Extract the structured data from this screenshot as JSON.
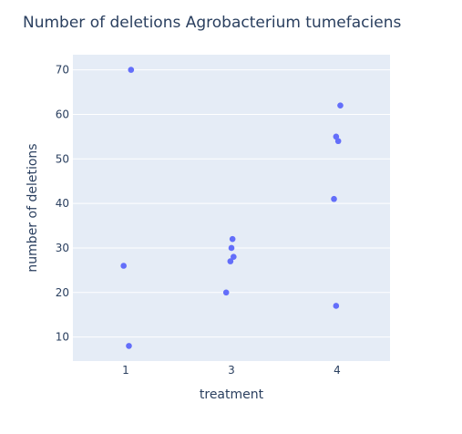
{
  "chart_data": {
    "type": "scatter",
    "title": "Number of deletions Agrobacterium tumefaciens",
    "xlabel": "treatment",
    "ylabel": "number of deletions",
    "x_categories": [
      "1",
      "3",
      "4"
    ],
    "xlim": [
      0.5,
      3.5
    ],
    "ylim": [
      4.6,
      73.4
    ],
    "yticks": [
      10,
      20,
      30,
      40,
      50,
      60,
      70
    ],
    "grid": true,
    "marker_color": "#636efa",
    "plot_bgcolor": "#e5ecf6",
    "points": [
      {
        "treatment": "1",
        "x": 0.98,
        "y": 26
      },
      {
        "treatment": "1",
        "x": 1.03,
        "y": 8
      },
      {
        "treatment": "1",
        "x": 1.05,
        "y": 70
      },
      {
        "treatment": "3",
        "x": 1.95,
        "y": 20
      },
      {
        "treatment": "3",
        "x": 1.99,
        "y": 27
      },
      {
        "treatment": "3",
        "x": 2.0,
        "y": 30
      },
      {
        "treatment": "3",
        "x": 2.01,
        "y": 32
      },
      {
        "treatment": "3",
        "x": 2.02,
        "y": 28
      },
      {
        "treatment": "4",
        "x": 2.97,
        "y": 41
      },
      {
        "treatment": "4",
        "x": 2.99,
        "y": 55
      },
      {
        "treatment": "4",
        "x": 2.99,
        "y": 17
      },
      {
        "treatment": "4",
        "x": 3.01,
        "y": 54
      },
      {
        "treatment": "4",
        "x": 3.03,
        "y": 62
      }
    ]
  }
}
